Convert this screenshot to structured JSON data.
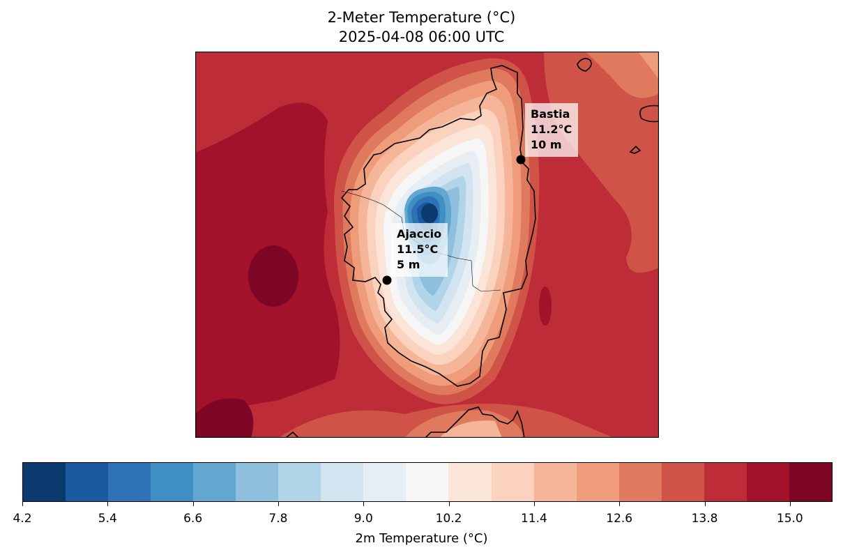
{
  "title": "2-Meter Temperature (°C)",
  "subtitle": "2025-04-08 06:00 UTC",
  "stations": [
    {
      "name": "Bastia",
      "temp": "11.2°C",
      "elev": "10 m"
    },
    {
      "name": "Ajaccio",
      "temp": "11.5°C",
      "elev": "5 m"
    }
  ],
  "colorbar": {
    "label": "2m Temperature (°C)",
    "levels": [
      "4.2",
      "4.8",
      "5.4",
      "6.0",
      "6.6",
      "7.2",
      "7.8",
      "8.4",
      "9.0",
      "9.6",
      "10.2",
      "10.8",
      "11.4",
      "12.0",
      "12.6",
      "13.2",
      "13.8",
      "14.4",
      "15.0",
      "15.6"
    ],
    "tick_labels": [
      "4.2",
      "5.4",
      "6.6",
      "7.8",
      "9.0",
      "10.2",
      "11.4",
      "12.6",
      "13.8",
      "15.0"
    ],
    "colors": [
      "#0b3a6e",
      "#1b5aa0",
      "#2c72b5",
      "#408fc3",
      "#63a7d1",
      "#8ec0dd",
      "#b1d5e8",
      "#d1e4ef",
      "#e6eef4",
      "#f6f6f6",
      "#fbe5d9",
      "#fbd2bd",
      "#f5b598",
      "#ef9c7b",
      "#e07a5f",
      "#cf5347",
      "#bd2c37",
      "#a2122a",
      "#7d0525"
    ]
  },
  "chart_data": {
    "type": "contour-map",
    "variable": "2m Temperature (°C)",
    "valid_time": "2025-04-08 06:00 UTC",
    "color_range": [
      4.2,
      15.6
    ],
    "contour_interval": 0.6,
    "stations": [
      {
        "name": "Bastia",
        "temperature_c": 11.2,
        "elevation_m": 10
      },
      {
        "name": "Ajaccio",
        "temperature_c": 11.5,
        "elevation_m": 5
      }
    ]
  }
}
